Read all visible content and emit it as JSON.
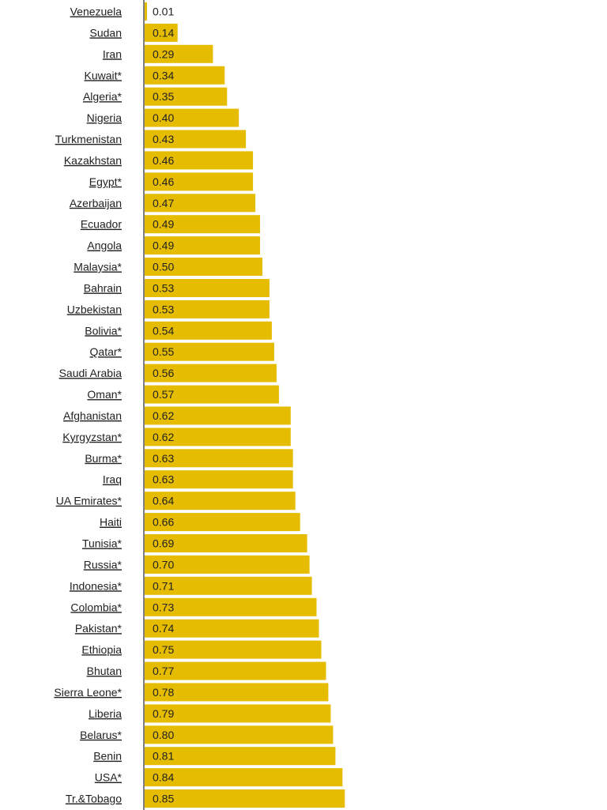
{
  "chart_data": {
    "type": "bar",
    "orientation": "horizontal",
    "title": "",
    "xlabel": "",
    "ylabel": "",
    "grid": false,
    "xlim": [
      0,
      0.9
    ],
    "bar_color": "#e6bc00",
    "categories": [
      "Venezuela",
      "Sudan",
      "Iran",
      "Kuwait*",
      "Algeria*",
      "Nigeria",
      "Turkmenistan",
      "Kazakhstan",
      "Egypt*",
      "Azerbaijan",
      "Ecuador",
      "Angola",
      "Malaysia*",
      "Bahrain",
      "Uzbekistan",
      "Bolivia*",
      "Qatar*",
      "Saudi Arabia",
      "Oman*",
      "Afghanistan",
      "Kyrgyzstan*",
      "Burma*",
      "Iraq",
      "UA Emirates*",
      "Haiti",
      "Tunisia*",
      "Russia*",
      "Indonesia*",
      "Colombia*",
      "Pakistan*",
      "Ethiopia",
      "Bhutan",
      "Sierra Leone*",
      "Liberia",
      "Belarus*",
      "Benin",
      "USA*",
      "Tr.&Tobago"
    ],
    "values": [
      0.01,
      0.14,
      0.29,
      0.34,
      0.35,
      0.4,
      0.43,
      0.46,
      0.46,
      0.47,
      0.49,
      0.49,
      0.5,
      0.53,
      0.53,
      0.54,
      0.55,
      0.56,
      0.57,
      0.62,
      0.62,
      0.63,
      0.63,
      0.64,
      0.66,
      0.69,
      0.7,
      0.71,
      0.73,
      0.74,
      0.75,
      0.77,
      0.78,
      0.79,
      0.8,
      0.81,
      0.84,
      0.85
    ],
    "value_labels": [
      "0.01",
      "0.14",
      "0.29",
      "0.34",
      "0.35",
      "0.40",
      "0.43",
      "0.46",
      "0.46",
      "0.47",
      "0.49",
      "0.49",
      "0.50",
      "0.53",
      "0.53",
      "0.54",
      "0.55",
      "0.56",
      "0.57",
      "0.62",
      "0.62",
      "0.63",
      "0.63",
      "0.64",
      "0.66",
      "0.69",
      "0.70",
      "0.71",
      "0.73",
      "0.74",
      "0.75",
      "0.77",
      "0.78",
      "0.79",
      "0.80",
      "0.81",
      "0.84",
      "0.85"
    ]
  }
}
